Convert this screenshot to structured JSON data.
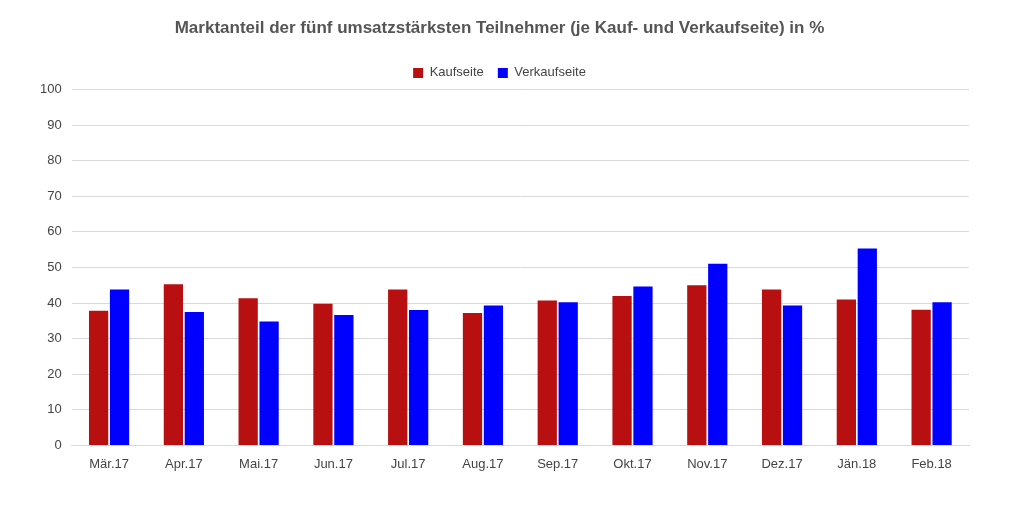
{
  "chart_data": {
    "type": "bar",
    "title": "Marktanteil der fünf umsatzstärksten Teilnehmer (je Kauf- und Verkaufseite) in %",
    "categories": [
      "Mär.17",
      "Apr.17",
      "Mai.17",
      "Jun.17",
      "Jul.17",
      "Aug.17",
      "Sep.17",
      "Okt.17",
      "Nov.17",
      "Dez.17",
      "Jän.18",
      "Feb.18"
    ],
    "series": [
      {
        "name": "Kaufseite",
        "color": "#b81010",
        "values": [
          37.8,
          45.3,
          41.3,
          39.8,
          43.8,
          37.2,
          40.7,
          42.0,
          45.0,
          43.8,
          41.0,
          38.1
        ]
      },
      {
        "name": "Verkaufseite",
        "color": "#0000ff",
        "values": [
          43.8,
          37.5,
          34.8,
          36.6,
          38.0,
          39.3,
          40.2,
          44.6,
          51.0,
          39.3,
          55.3,
          40.2
        ]
      }
    ],
    "ylim": [
      0,
      100
    ],
    "yticks": [
      0,
      10,
      20,
      30,
      40,
      50,
      60,
      70,
      80,
      90,
      100
    ],
    "grid": true,
    "legend": "top"
  }
}
